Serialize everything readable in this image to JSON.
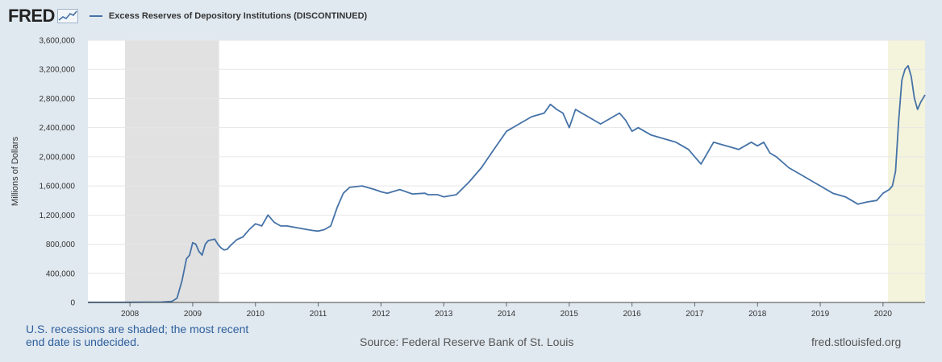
{
  "header": {
    "logo": "FRED",
    "series_title": "Excess Reserves of Depository Institutions (DISCONTINUED)"
  },
  "footer": {
    "note": "U.S. recessions are shaded; the most recent end date is undecided.",
    "source": "Source: Federal Reserve Bank of St. Louis",
    "url": "fred.stlouisfed.org"
  },
  "colors": {
    "line": "#4572a7",
    "recession": "#e1e1e1",
    "recent_recession": "#f4f4dc",
    "background": "#e1e9f0"
  },
  "chart_data": {
    "type": "line",
    "title": "Excess Reserves of Depository Institutions (DISCONTINUED)",
    "ylabel": "Millions of Dollars",
    "ylim": [
      0,
      3600000
    ],
    "yticks": [
      0,
      400000,
      800000,
      1200000,
      1600000,
      2000000,
      2400000,
      2800000,
      3200000,
      3600000
    ],
    "ytick_labels": [
      "0",
      "400,000",
      "800,000",
      "1,200,000",
      "1,600,000",
      "2,000,000",
      "2,400,000",
      "2,800,000",
      "3,200,000",
      "3,600,000"
    ],
    "xlim": [
      2007.33,
      2020.67
    ],
    "xticks": [
      2008,
      2009,
      2010,
      2011,
      2012,
      2013,
      2014,
      2015,
      2016,
      2017,
      2018,
      2019,
      2020
    ],
    "xtick_labels": [
      "2008",
      "2009",
      "2010",
      "2011",
      "2012",
      "2013",
      "2014",
      "2015",
      "2016",
      "2017",
      "2018",
      "2019",
      "2020"
    ],
    "grid": true,
    "recessions": [
      {
        "start": 2007.92,
        "end": 2009.42
      },
      {
        "start": 2020.08,
        "end": 2020.67
      }
    ],
    "series": [
      {
        "x": [
          2007.33,
          2007.9,
          2008.5,
          2008.67,
          2008.75,
          2008.83,
          2008.9,
          2008.95,
          2009.0,
          2009.05,
          2009.1,
          2009.15,
          2009.2,
          2009.25,
          2009.3,
          2009.35,
          2009.4,
          2009.45,
          2009.5,
          2009.55,
          2009.6,
          2009.7,
          2009.8,
          2009.9,
          2010.0,
          2010.1,
          2010.2,
          2010.3,
          2010.4,
          2010.5,
          2010.7,
          2010.9,
          2011.0,
          2011.1,
          2011.2,
          2011.3,
          2011.4,
          2011.5,
          2011.7,
          2011.9,
          2012.0,
          2012.1,
          2012.3,
          2012.5,
          2012.7,
          2012.75,
          2012.9,
          2013.0,
          2013.2,
          2013.4,
          2013.6,
          2013.8,
          2014.0,
          2014.2,
          2014.4,
          2014.6,
          2014.7,
          2014.8,
          2014.9,
          2015.0,
          2015.1,
          2015.2,
          2015.3,
          2015.5,
          2015.7,
          2015.8,
          2015.9,
          2016.0,
          2016.1,
          2016.3,
          2016.5,
          2016.7,
          2016.9,
          2017.0,
          2017.1,
          2017.2,
          2017.3,
          2017.5,
          2017.7,
          2017.9,
          2018.0,
          2018.1,
          2018.2,
          2018.3,
          2018.5,
          2018.7,
          2018.9,
          2019.0,
          2019.2,
          2019.4,
          2019.5,
          2019.6,
          2019.75,
          2019.9,
          2020.0,
          2020.1,
          2020.15,
          2020.2,
          2020.25,
          2020.3,
          2020.35,
          2020.4,
          2020.45,
          2020.5,
          2020.55,
          2020.6,
          2020.67
        ],
        "values": [
          2000,
          2000,
          5000,
          15000,
          60000,
          300000,
          600000,
          650000,
          820000,
          800000,
          700000,
          650000,
          800000,
          850000,
          860000,
          870000,
          800000,
          750000,
          720000,
          730000,
          780000,
          860000,
          900000,
          1000000,
          1080000,
          1050000,
          1200000,
          1100000,
          1050000,
          1050000,
          1020000,
          990000,
          980000,
          1000000,
          1050000,
          1300000,
          1500000,
          1580000,
          1600000,
          1550000,
          1520000,
          1500000,
          1550000,
          1490000,
          1500000,
          1480000,
          1480000,
          1450000,
          1480000,
          1650000,
          1850000,
          2100000,
          2350000,
          2450000,
          2550000,
          2600000,
          2720000,
          2650000,
          2600000,
          2400000,
          2650000,
          2600000,
          2550000,
          2450000,
          2550000,
          2600000,
          2500000,
          2350000,
          2400000,
          2300000,
          2250000,
          2200000,
          2100000,
          2000000,
          1900000,
          2050000,
          2200000,
          2150000,
          2100000,
          2200000,
          2150000,
          2200000,
          2050000,
          2000000,
          1850000,
          1750000,
          1650000,
          1600000,
          1500000,
          1450000,
          1400000,
          1350000,
          1380000,
          1400000,
          1500000,
          1550000,
          1600000,
          1800000,
          2500000,
          3050000,
          3200000,
          3250000,
          3100000,
          2800000,
          2650000,
          2750000,
          2850000
        ]
      }
    ]
  }
}
